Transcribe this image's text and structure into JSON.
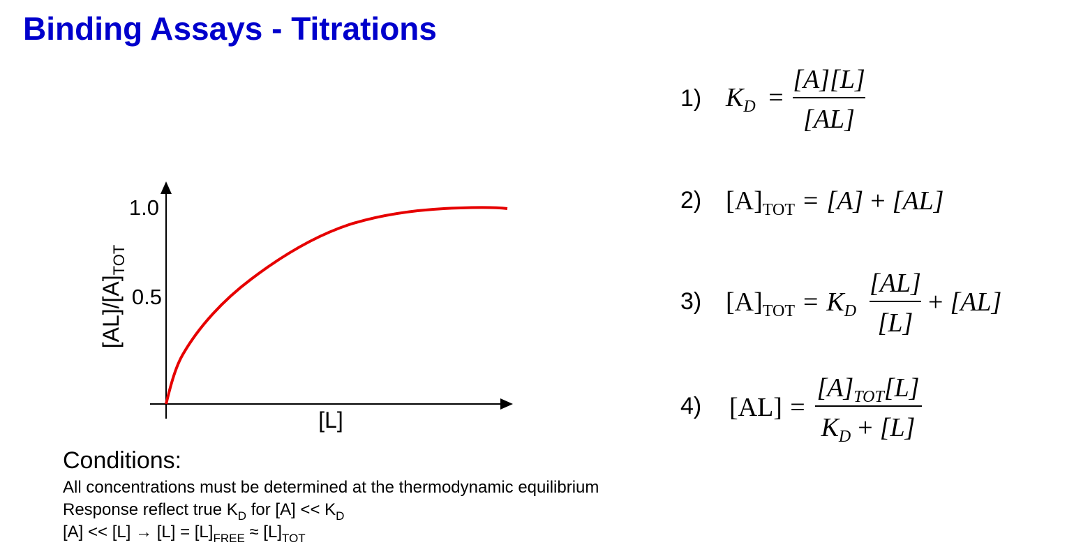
{
  "title": "Binding Assays - Titrations",
  "plot": {
    "y_label": {
      "main": "[AL]/[A]",
      "sub": "TOT"
    },
    "y_ticks": [
      "1.0",
      "0.5"
    ],
    "x_label": "[L]"
  },
  "equations": [
    {
      "number": "1)",
      "lhs": "K",
      "lhs_sub": "D",
      "equals": "=",
      "numerator": "[A][L]",
      "denominator": "[AL]"
    },
    {
      "number": "2)",
      "lhs": "[A]",
      "lhs_sub": "TOT",
      "equals": "=",
      "rhs": [
        "[A]",
        "+",
        "[AL]"
      ]
    },
    {
      "number": "3)",
      "lhs": "[A]",
      "lhs_sub": "TOT",
      "equals": "=",
      "factor": "K",
      "factor_sub": "D",
      "numerator": "[AL]",
      "denominator": "[L]",
      "rest": [
        "+",
        "[AL]"
      ]
    },
    {
      "number": "4)",
      "lhs": "[AL]",
      "equals": "=",
      "numerator": [
        "[A]",
        "TOT",
        "[L]"
      ],
      "denominator": [
        "K",
        "D",
        "+",
        "[L]"
      ]
    }
  ],
  "conditions": {
    "heading": "Conditions:",
    "lines": [
      [
        "All concentrations must be determined at the thermodynamic equilibrium"
      ],
      [
        "Response reflect true K",
        "D",
        " for [A] << K",
        "D"
      ],
      [
        "[A] << [L] → [L] = [L]",
        "FREE",
        " ≈ [L]",
        "TOT"
      ]
    ]
  }
}
